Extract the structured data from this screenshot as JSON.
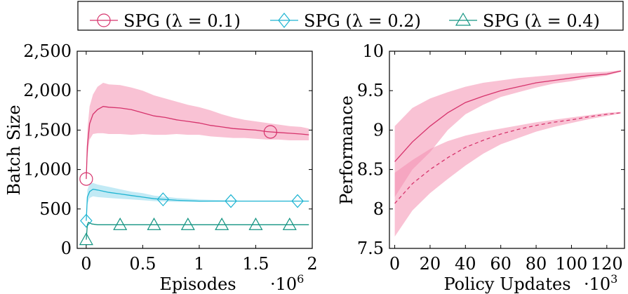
{
  "colors": {
    "spg_01": "#d6336c",
    "spg_01_fill": "#f48fb1",
    "spg_02": "#1eb4d2",
    "spg_02_fill": "#8fd8ec",
    "spg_04": "#139482"
  },
  "legend": {
    "items": [
      {
        "label": "SPG (λ = 0.1)",
        "marker": "circle-icon",
        "color": "#d6336c"
      },
      {
        "label": "SPG (λ = 0.2)",
        "marker": "diamond-icon",
        "color": "#1eb4d2"
      },
      {
        "label": "SPG (λ = 0.4)",
        "marker": "triangle-icon",
        "color": "#139482"
      }
    ]
  },
  "chart_data": [
    {
      "type": "line",
      "xlabel": "Episodes",
      "x_multiplier": "·10^6",
      "ylabel": "Batch Size",
      "xlim": [
        -0.08,
        2.0
      ],
      "ylim": [
        0,
        2500
      ],
      "xticks": [
        0,
        0.5,
        1,
        1.5,
        2
      ],
      "xtick_labels": [
        "0",
        "0.5",
        "1",
        "1.5",
        "2"
      ],
      "yticks": [
        0,
        500,
        1000,
        1500,
        2000,
        2500
      ],
      "ytick_labels": [
        "0",
        "500",
        "1,000",
        "1,500",
        "2,000",
        "2,500"
      ],
      "series": [
        {
          "name": "SPG (λ = 0.1)",
          "marker": "circle",
          "x": [
            0,
            0.01,
            0.03,
            0.06,
            0.1,
            0.15,
            0.2,
            0.3,
            0.4,
            0.5,
            0.6,
            0.7,
            0.8,
            0.9,
            1.0,
            1.1,
            1.2,
            1.3,
            1.4,
            1.5,
            1.6,
            1.7,
            1.8,
            1.9,
            1.97
          ],
          "y": [
            880,
            1300,
            1580,
            1700,
            1760,
            1800,
            1790,
            1780,
            1760,
            1720,
            1680,
            1660,
            1630,
            1610,
            1590,
            1560,
            1540,
            1520,
            1510,
            1500,
            1480,
            1470,
            1460,
            1450,
            1440
          ],
          "band_low": [
            880,
            1150,
            1380,
            1450,
            1460,
            1460,
            1450,
            1450,
            1440,
            1450,
            1440,
            1440,
            1450,
            1440,
            1440,
            1420,
            1410,
            1400,
            1400,
            1390,
            1380,
            1380,
            1370,
            1370,
            1370
          ],
          "band_high": [
            880,
            1500,
            1800,
            1950,
            2050,
            2100,
            2080,
            2070,
            2040,
            2000,
            1940,
            1900,
            1860,
            1820,
            1790,
            1750,
            1700,
            1660,
            1630,
            1610,
            1590,
            1570,
            1550,
            1540,
            1520
          ],
          "marker_x": [
            0,
            1.63
          ]
        },
        {
          "name": "SPG (λ = 0.2)",
          "marker": "diamond",
          "x": [
            0,
            0.01,
            0.03,
            0.06,
            0.1,
            0.2,
            0.3,
            0.4,
            0.5,
            0.6,
            0.8,
            1.0,
            1.5,
            1.97
          ],
          "y": [
            350,
            650,
            720,
            750,
            740,
            710,
            690,
            670,
            650,
            630,
            610,
            600,
            600,
            600
          ],
          "band_low": [
            350,
            560,
            640,
            660,
            650,
            640,
            630,
            620,
            610,
            600,
            590,
            590,
            600,
            600
          ],
          "band_high": [
            350,
            740,
            820,
            830,
            810,
            780,
            750,
            720,
            700,
            670,
            640,
            620,
            600,
            600
          ],
          "marker_x": [
            0,
            0.68,
            1.28,
            1.87
          ]
        },
        {
          "name": "SPG (λ = 0.4)",
          "marker": "triangle",
          "x": [
            0,
            0.01,
            0.02,
            0.05,
            0.1,
            0.2,
            0.5,
            1.0,
            1.5,
            1.97
          ],
          "y": [
            110,
            300,
            330,
            310,
            300,
            300,
            300,
            300,
            300,
            300
          ],
          "marker_x": [
            0,
            0.3,
            0.6,
            0.9,
            1.2,
            1.5,
            1.8
          ]
        }
      ]
    },
    {
      "type": "line",
      "xlabel": "Policy Updates",
      "x_multiplier": "·10^3",
      "ylabel": "Performance",
      "xlim": [
        -3,
        130
      ],
      "ylim": [
        7.5,
        10
      ],
      "xticks": [
        0,
        20,
        40,
        60,
        80,
        100,
        120
      ],
      "xtick_labels": [
        "0",
        "20",
        "40",
        "60",
        "80",
        "100",
        "120"
      ],
      "yticks": [
        7.5,
        8,
        8.5,
        9,
        9.5,
        10
      ],
      "ytick_labels": [
        "7.5",
        "8",
        "8.5",
        "9",
        "9.5",
        "10"
      ],
      "series": [
        {
          "style": "solid",
          "x": [
            0,
            10,
            20,
            30,
            40,
            50,
            60,
            70,
            80,
            90,
            100,
            110,
            120,
            128
          ],
          "y": [
            8.6,
            8.85,
            9.05,
            9.22,
            9.35,
            9.43,
            9.5,
            9.55,
            9.6,
            9.63,
            9.66,
            9.69,
            9.71,
            9.75
          ],
          "band_low": [
            8.15,
            8.5,
            8.72,
            9.0,
            9.2,
            9.32,
            9.42,
            9.48,
            9.54,
            9.59,
            9.62,
            9.66,
            9.69,
            9.74
          ],
          "band_high": [
            9.05,
            9.28,
            9.4,
            9.48,
            9.55,
            9.6,
            9.63,
            9.66,
            9.68,
            9.7,
            9.72,
            9.73,
            9.74,
            9.76
          ]
        },
        {
          "style": "dashed",
          "x": [
            0,
            10,
            20,
            30,
            40,
            50,
            60,
            70,
            80,
            90,
            100,
            110,
            120,
            128
          ],
          "y": [
            8.07,
            8.32,
            8.5,
            8.65,
            8.78,
            8.87,
            8.95,
            9.01,
            9.06,
            9.1,
            9.13,
            9.17,
            9.2,
            9.22
          ],
          "band_low": [
            7.65,
            7.98,
            8.2,
            8.38,
            8.55,
            8.7,
            8.82,
            8.9,
            8.98,
            9.04,
            9.09,
            9.14,
            9.18,
            9.21
          ],
          "band_high": [
            8.46,
            8.62,
            8.76,
            8.86,
            8.93,
            8.98,
            9.02,
            9.06,
            9.1,
            9.13,
            9.16,
            9.19,
            9.22,
            9.23
          ]
        }
      ]
    }
  ]
}
